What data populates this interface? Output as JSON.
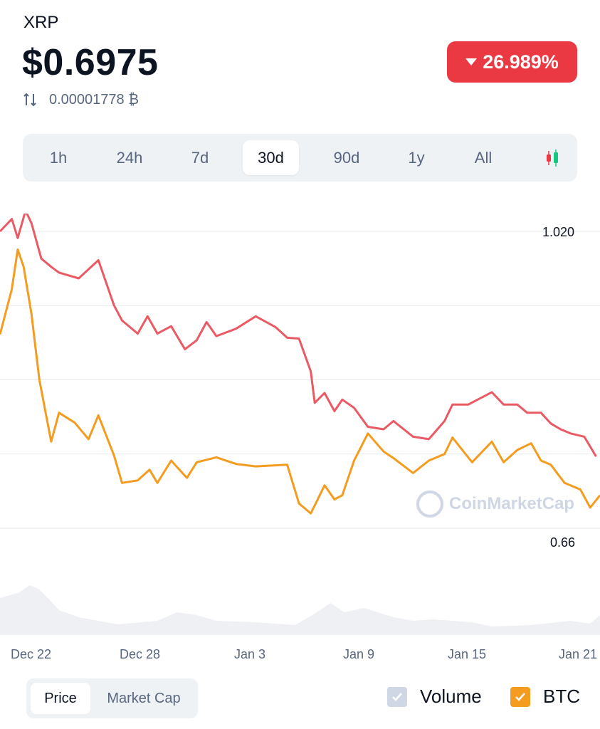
{
  "header": {
    "symbol": "XRP",
    "price": "$0.6975",
    "btc_price": "0.00001778 ₿",
    "change": "26.989%",
    "change_color": "#ea3943"
  },
  "range_tabs": [
    {
      "label": "1h",
      "active": false
    },
    {
      "label": "24h",
      "active": false
    },
    {
      "label": "7d",
      "active": false
    },
    {
      "label": "30d",
      "active": true
    },
    {
      "label": "90d",
      "active": false
    },
    {
      "label": "1y",
      "active": false
    },
    {
      "label": "All",
      "active": false
    }
  ],
  "candle_icon": "candlestick-icon",
  "chart_data": {
    "type": "line",
    "y_top_label": "1.020",
    "y_bottom_label": "0.66",
    "ylim": [
      0.66,
      1.02
    ],
    "gridlines": [
      1.02,
      0.93,
      0.84,
      0.75,
      0.66
    ],
    "x_labels": [
      "Dec 22",
      "Dec 28",
      "Jan 3",
      "Jan 9",
      "Jan 15",
      "Jan 21"
    ],
    "x_range_days": [
      0,
      30.5
    ],
    "series": [
      {
        "color": "#ea5a64",
        "x": [
          0,
          0.6,
          0.9,
          1.3,
          1.6,
          2.1,
          2.6,
          3.0,
          4.0,
          5.0,
          5.8,
          6.2,
          7.0,
          7.5,
          8.0,
          8.7,
          9.4,
          10.0,
          10.5,
          11.0,
          12.0,
          13.0,
          14.0,
          14.6,
          15.2,
          15.8,
          16.0,
          16.5,
          17.0,
          17.4,
          18.0,
          18.7,
          19.5,
          20.0,
          21.0,
          21.8,
          22.6,
          23.0,
          23.8,
          25.0,
          25.6,
          26.3,
          26.8,
          27.5,
          28.0,
          28.5,
          29.0,
          29.7,
          30.3
        ],
        "values": [
          1.02,
          1.035,
          1.012,
          1.045,
          1.03,
          0.987,
          0.977,
          0.97,
          0.963,
          0.985,
          0.93,
          0.912,
          0.896,
          0.917,
          0.896,
          0.905,
          0.877,
          0.888,
          0.91,
          0.893,
          0.902,
          0.917,
          0.904,
          0.891,
          0.89,
          0.85,
          0.812,
          0.824,
          0.802,
          0.816,
          0.806,
          0.783,
          0.78,
          0.79,
          0.771,
          0.768,
          0.79,
          0.81,
          0.81,
          0.825,
          0.81,
          0.81,
          0.8,
          0.8,
          0.787,
          0.78,
          0.775,
          0.771,
          0.747
        ]
      },
      {
        "color": "#f39c1f",
        "x": [
          0,
          0.6,
          0.9,
          1.2,
          1.6,
          2.0,
          2.6,
          3.0,
          3.8,
          4.5,
          5.0,
          5.8,
          6.2,
          7.0,
          7.6,
          8.0,
          8.7,
          9.5,
          10.0,
          11.0,
          12.0,
          13.0,
          14.6,
          15.2,
          15.8,
          16.5,
          17.0,
          17.4,
          18.0,
          18.7,
          19.5,
          20.0,
          21.0,
          21.8,
          22.6,
          23.0,
          24.0,
          25.0,
          25.6,
          26.3,
          27.0,
          27.5,
          28.0,
          28.7,
          29.5,
          30.0,
          30.5
        ],
        "values": [
          0.895,
          0.95,
          0.998,
          0.977,
          0.92,
          0.84,
          0.765,
          0.8,
          0.788,
          0.768,
          0.797,
          0.748,
          0.715,
          0.718,
          0.731,
          0.715,
          0.742,
          0.721,
          0.74,
          0.746,
          0.738,
          0.735,
          0.737,
          0.69,
          0.678,
          0.712,
          0.695,
          0.7,
          0.742,
          0.775,
          0.753,
          0.745,
          0.727,
          0.742,
          0.75,
          0.77,
          0.74,
          0.765,
          0.74,
          0.755,
          0.763,
          0.742,
          0.737,
          0.715,
          0.707,
          0.685,
          0.7
        ]
      },
      {
        "color": "#eef0f3",
        "name": "volume",
        "x": [
          0,
          1,
          1.5,
          2.0,
          2.5,
          3.0,
          4.0,
          6.0,
          8.0,
          9.0,
          10.0,
          11.0,
          13.0,
          15.0,
          16.0,
          16.8,
          17.5,
          18.5,
          20.0,
          21.0,
          22.0,
          24.0,
          25.0,
          27.0,
          29.0,
          30.0,
          30.5
        ],
        "values": [
          52,
          60,
          70,
          64,
          50,
          35,
          25,
          15,
          20,
          32,
          28,
          20,
          18,
          14,
          30,
          45,
          32,
          38,
          25,
          20,
          22,
          18,
          12,
          14,
          20,
          16,
          28
        ]
      }
    ],
    "watermark": "CoinMarketCap"
  },
  "bottom": {
    "toggles": [
      {
        "label": "Price",
        "active": true
      },
      {
        "label": "Market Cap",
        "active": false
      }
    ],
    "legend": [
      {
        "label": "Volume",
        "checked_color": "#cfd6e4"
      },
      {
        "label": "BTC",
        "checked_color": "#f39c1f"
      }
    ]
  }
}
